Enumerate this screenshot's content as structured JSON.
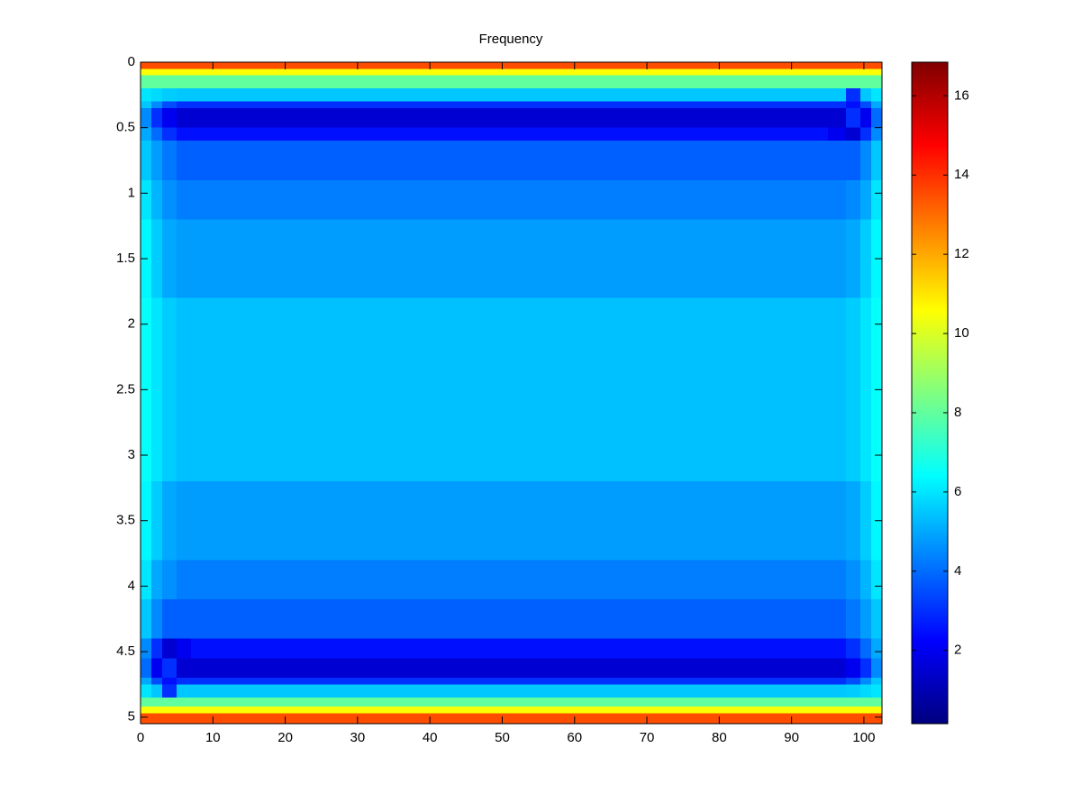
{
  "chart_data": {
    "type": "heatmap",
    "title": "Frequency",
    "colormap": "jet",
    "x_edges": [
      0,
      1.5,
      3,
      5,
      7,
      50,
      95,
      97.5,
      99.5,
      101,
      102.5
    ],
    "y_edges": [
      0,
      0.05,
      0.1,
      0.2,
      0.3,
      0.35,
      0.5,
      0.6,
      0.9,
      1.2,
      1.8,
      3.2,
      3.8,
      4.1,
      4.4,
      4.55,
      4.7,
      4.75,
      4.85,
      4.92,
      4.97,
      5.05
    ],
    "values": [
      [
        13.5,
        13.5,
        13.5,
        13.5,
        13.5,
        13.5,
        13.5,
        13.5,
        13.5,
        13.5
      ],
      [
        10.5,
        10.5,
        10.5,
        10.5,
        10.5,
        10.5,
        10.5,
        10.5,
        10.5,
        10.5
      ],
      [
        8,
        8,
        8,
        8,
        8,
        8,
        8,
        8,
        8,
        8
      ],
      [
        6,
        5.8,
        5.6,
        5.5,
        5.5,
        5.5,
        5.5,
        3,
        5.5,
        6
      ],
      [
        5.5,
        4.5,
        3.5,
        3,
        3,
        3,
        3,
        2.5,
        3.5,
        5
      ],
      [
        4.5,
        3,
        2,
        1.5,
        1.5,
        1.5,
        1.5,
        3,
        2,
        4
      ],
      [
        5,
        4,
        3,
        2.5,
        2.5,
        2.5,
        2,
        1.5,
        3,
        4.5
      ],
      [
        5.5,
        4.8,
        4.2,
        3.8,
        3.8,
        3.8,
        3.8,
        3.8,
        4.5,
        5.5
      ],
      [
        6,
        5.2,
        4.6,
        4.3,
        4.3,
        4.3,
        4.3,
        4.5,
        5,
        6
      ],
      [
        6.3,
        5.6,
        5,
        4.8,
        4.8,
        4.8,
        4.8,
        5,
        5.6,
        6.3
      ],
      [
        6.5,
        6,
        5.6,
        5.4,
        5.4,
        5.4,
        5.4,
        5.6,
        6,
        6.5
      ],
      [
        6.3,
        5.6,
        5,
        4.8,
        4.8,
        4.8,
        4.8,
        5,
        5.6,
        6.3
      ],
      [
        6,
        5,
        4.6,
        4.3,
        4.3,
        4.3,
        4.3,
        4.6,
        5.2,
        6
      ],
      [
        5.5,
        4.5,
        3.8,
        3.8,
        3.8,
        3.8,
        3.8,
        4.2,
        4.8,
        5.5
      ],
      [
        4.5,
        3,
        1.5,
        2,
        2.5,
        2.5,
        2.5,
        3,
        4,
        5
      ],
      [
        4,
        2,
        3,
        1.5,
        1.5,
        1.5,
        1.5,
        2,
        3,
        4.5
      ],
      [
        5,
        3.5,
        2.5,
        3,
        3,
        3,
        3,
        3.5,
        4.5,
        5.5
      ],
      [
        6,
        5.5,
        3,
        5.5,
        5.5,
        5.5,
        5.5,
        5.6,
        5.8,
        6
      ],
      [
        8,
        8,
        8,
        8,
        8,
        8,
        8,
        8,
        8,
        8
      ],
      [
        10.5,
        10.5,
        10.5,
        10.5,
        10.5,
        10.5,
        10.5,
        10.5,
        10.5,
        10.5
      ],
      [
        13.5,
        13.5,
        13.5,
        13.5,
        13.5,
        13.5,
        13.5,
        13.5,
        13.5,
        13.5
      ]
    ],
    "xlim": [
      0,
      102.5
    ],
    "xticks": [
      0,
      10,
      20,
      30,
      40,
      50,
      60,
      70,
      80,
      90,
      100
    ],
    "ylim": [
      0,
      5.05
    ],
    "y_direction": "reverse",
    "yticks": [
      0,
      0.5,
      1,
      1.5,
      2,
      2.5,
      3,
      3.5,
      4,
      4.5,
      5
    ],
    "clim": [
      0.15,
      16.85
    ],
    "cticks": [
      2,
      4,
      6,
      8,
      10,
      12,
      14,
      16
    ]
  }
}
